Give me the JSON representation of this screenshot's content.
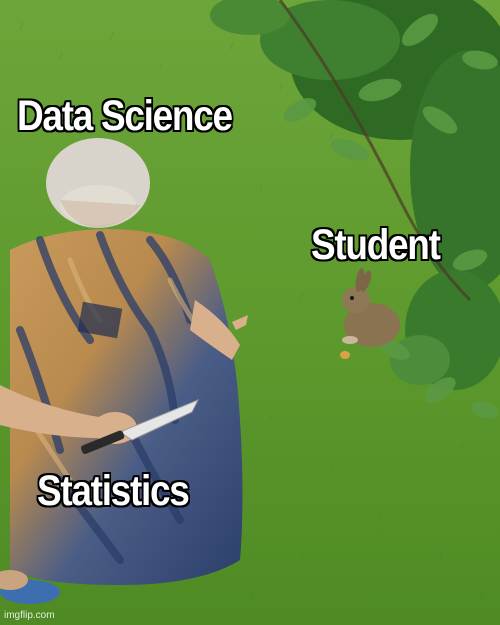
{
  "captions": {
    "top": "Data Science",
    "right": "Student",
    "bottom": "Statistics"
  },
  "watermark": "imgflip.com",
  "scene": {
    "woman": "elderly woman crouching in tie-dye dress, pointing at rabbit while hiding a knife behind her back",
    "rabbit": "small brown wild rabbit sitting on grass",
    "tree": "green leafy branches in upper right",
    "ground": "green lawn"
  },
  "colors": {
    "grass": "#5f9a2c",
    "leaves": "#3c7a2a",
    "caption_fill": "#ffffff",
    "caption_outline": "#000000"
  }
}
